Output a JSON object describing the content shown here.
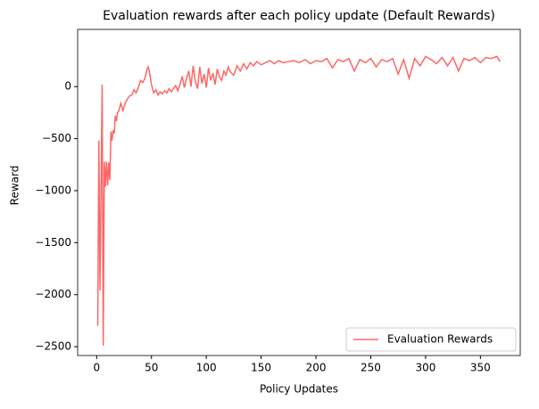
{
  "chart_data": {
    "type": "line",
    "title": "Evaluation rewards after each policy update (Default Rewards)",
    "x_label": "Policy Updates",
    "y_label": "Reward",
    "x": [
      1,
      2,
      3,
      4,
      5,
      6,
      7,
      8,
      9,
      10,
      11,
      12,
      13,
      14,
      15,
      16,
      17,
      18,
      19,
      20,
      22,
      24,
      26,
      28,
      30,
      32,
      34,
      36,
      38,
      40,
      42,
      44,
      46,
      47,
      48,
      50,
      52,
      54,
      56,
      58,
      60,
      62,
      64,
      66,
      68,
      70,
      72,
      74,
      76,
      78,
      80,
      82,
      84,
      86,
      88,
      90,
      92,
      94,
      96,
      98,
      100,
      102,
      104,
      106,
      108,
      110,
      112,
      114,
      116,
      118,
      120,
      122,
      125,
      128,
      131,
      134,
      137,
      140,
      143,
      146,
      150,
      154,
      158,
      162,
      166,
      170,
      175,
      180,
      185,
      190,
      195,
      200,
      205,
      210,
      215,
      220,
      225,
      230,
      235,
      240,
      245,
      250,
      255,
      260,
      265,
      270,
      275,
      280,
      285,
      290,
      295,
      300,
      305,
      310,
      315,
      320,
      325,
      330,
      335,
      340,
      345,
      350,
      355,
      360,
      365,
      368
    ],
    "series": [
      {
        "name": "Evaluation Rewards",
        "color": "#ff6666",
        "values": [
          -2300,
          -520,
          -1960,
          -1000,
          20,
          -2490,
          -720,
          -960,
          -720,
          -950,
          -730,
          -900,
          -430,
          -520,
          -420,
          -450,
          -280,
          -330,
          -250,
          -240,
          -160,
          -230,
          -160,
          -120,
          -90,
          -80,
          -30,
          -60,
          -10,
          60,
          40,
          80,
          170,
          190,
          150,
          20,
          -60,
          -30,
          -80,
          -50,
          -70,
          -40,
          -60,
          -20,
          -50,
          -20,
          10,
          -40,
          20,
          100,
          -10,
          80,
          150,
          0,
          200,
          50,
          -20,
          190,
          30,
          120,
          -10,
          180,
          60,
          130,
          20,
          170,
          90,
          60,
          150,
          110,
          190,
          140,
          110,
          200,
          150,
          220,
          170,
          230,
          200,
          240,
          210,
          230,
          250,
          220,
          250,
          230,
          240,
          250,
          230,
          260,
          220,
          250,
          240,
          270,
          180,
          260,
          240,
          270,
          150,
          260,
          230,
          270,
          190,
          260,
          240,
          270,
          120,
          260,
          80,
          270,
          200,
          290,
          260,
          220,
          280,
          200,
          280,
          150,
          270,
          250,
          280,
          230,
          280,
          270,
          290,
          240
        ]
      }
    ],
    "xlim": [
      -17.35,
      386.35
    ],
    "ylim": [
      -2585,
      550
    ],
    "xticks": [
      0,
      50,
      100,
      150,
      200,
      250,
      300,
      350
    ],
    "yticks": [
      {
        "value": -2500,
        "label": "−2500"
      },
      {
        "value": -2000,
        "label": "−2000"
      },
      {
        "value": -1500,
        "label": "−1500"
      },
      {
        "value": -1000,
        "label": "−1000"
      },
      {
        "value": -500,
        "label": "−500"
      },
      0
    ],
    "legend": "lower right"
  }
}
